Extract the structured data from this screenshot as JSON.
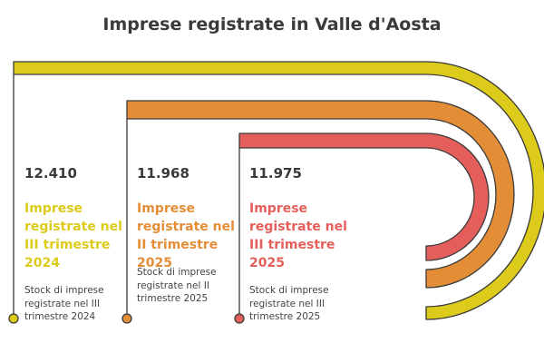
{
  "title": "Imprese registrate in Valle d'Aosta",
  "colors": {
    "series_1": "#dccb1a",
    "series_2": "#e38e37",
    "series_3": "#e45f5b",
    "text_dark": "#3a3a3a",
    "stroke": "#3a3a3a"
  },
  "items": [
    {
      "value": "12.410",
      "heading": "Imprese registrate nel III trimestre 2024",
      "description": "Stock di imprese registrate nel III trimestre 2024",
      "color": "#dccb1a"
    },
    {
      "value": "11.968",
      "heading": "Imprese registrate nel II trimestre 2025",
      "description": "Stock di imprese registrate nel II trimestre 2025",
      "color": "#e38e37"
    },
    {
      "value": "11.975",
      "heading": "Imprese registrate nel III trimestre 2025",
      "description": "Stock di imprese registrate nel III trimestre 2025",
      "color": "#e45f5b"
    }
  ]
}
